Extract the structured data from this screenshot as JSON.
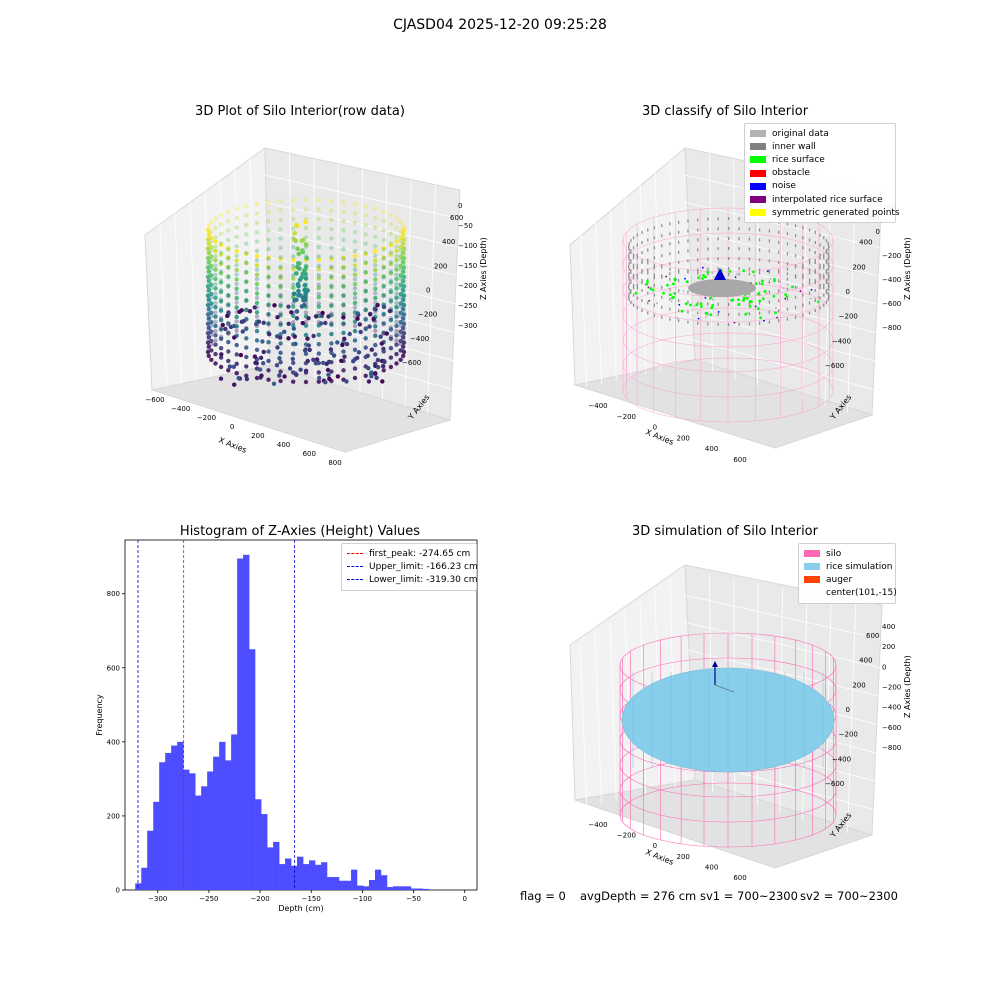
{
  "figure": {
    "suptitle": "CJASD04 2025-12-20 09:25:28",
    "footer": {
      "flag": "flag = 0",
      "avg_depth": "avgDepth = 276 cm",
      "sv1": "sv1 = 700~2300",
      "sv2": "sv2 = 700~2300"
    }
  },
  "chart_data": [
    {
      "type": "scatter",
      "title": "3D Plot of Silo Interior(row data)",
      "xlabel": "X Axies",
      "ylabel": "Y Axies",
      "zlabel": "Z Axies (Depth)",
      "x_ticks": [
        "−600",
        "−400",
        "−200",
        "0",
        "200",
        "400",
        "600",
        "800"
      ],
      "y_ticks": [
        "−600",
        "−400",
        "−200",
        "0",
        "200",
        "400",
        "600"
      ],
      "z_ticks": [
        "0",
        "−50",
        "−100",
        "−150",
        "−200",
        "−250",
        "−300"
      ],
      "colormap": "viridis",
      "grid": true
    },
    {
      "type": "scatter",
      "title": "3D classify of Silo Interior",
      "xlabel": "X Axies",
      "ylabel": "Y Axies",
      "zlabel": "Z Axies (Depth)",
      "x_ticks": [
        "−400",
        "−200",
        "0",
        "200",
        "400",
        "600"
      ],
      "y_ticks": [
        "−600",
        "−400",
        "−200",
        "0",
        "200",
        "400",
        "600"
      ],
      "z_ticks": [
        "200",
        "0",
        "−200",
        "−400",
        "−600",
        "−800"
      ],
      "z_tick_partial": "0",
      "legend_position": "top-right",
      "legend": [
        {
          "label": "original data",
          "color": "#b3b3b3"
        },
        {
          "label": "inner wall",
          "color": "#808080"
        },
        {
          "label": "rice surface",
          "color": "#00ff00"
        },
        {
          "label": "obstacle",
          "color": "#ff0000"
        },
        {
          "label": "noise",
          "color": "#0000ff"
        },
        {
          "label": "interpolated rice surface",
          "color": "#800080"
        },
        {
          "label": "symmetric generated points",
          "color": "#ffff00"
        }
      ],
      "grid": true
    },
    {
      "type": "bar",
      "title": "Histogram of Z-Axies (Height) Values",
      "xlabel": "Depth (cm)",
      "ylabel": "Frequency",
      "xlim": [
        -332,
        12
      ],
      "ylim": [
        0,
        945
      ],
      "x_ticks": [
        -300,
        -250,
        -200,
        -150,
        -100,
        -50,
        0
      ],
      "x_tick_labels": [
        "−300",
        "−250",
        "−200",
        "−150",
        "−100",
        "−50",
        "0"
      ],
      "y_ticks": [
        0,
        200,
        400,
        600,
        800
      ],
      "bar_color": "#4d4dff",
      "bins": [
        [
          -322.0,
          -316.1,
          18
        ],
        [
          -316.1,
          -310.3,
          60
        ],
        [
          -310.3,
          -304.4,
          160
        ],
        [
          -304.4,
          -298.6,
          238
        ],
        [
          -298.6,
          -292.7,
          345
        ],
        [
          -292.7,
          -286.9,
          370
        ],
        [
          -286.9,
          -281.0,
          390
        ],
        [
          -281.0,
          -275.1,
          400
        ],
        [
          -275.1,
          -269.3,
          325
        ],
        [
          -269.3,
          -263.4,
          315
        ],
        [
          -263.4,
          -257.6,
          255
        ],
        [
          -257.6,
          -251.7,
          280
        ],
        [
          -251.7,
          -245.9,
          320
        ],
        [
          -245.9,
          -240.0,
          360
        ],
        [
          -240.0,
          -234.1,
          400
        ],
        [
          -234.1,
          -228.3,
          350
        ],
        [
          -228.3,
          -222.4,
          420
        ],
        [
          -222.4,
          -216.6,
          895
        ],
        [
          -216.6,
          -210.7,
          905
        ],
        [
          -210.7,
          -204.9,
          650
        ],
        [
          -204.9,
          -199.0,
          245
        ],
        [
          -199.0,
          -193.1,
          205
        ],
        [
          -193.1,
          -187.3,
          115
        ],
        [
          -187.3,
          -181.4,
          130
        ],
        [
          -181.4,
          -175.6,
          70
        ],
        [
          -175.6,
          -169.7,
          85
        ],
        [
          -169.7,
          -163.9,
          65
        ],
        [
          -163.9,
          -158.0,
          90
        ],
        [
          -158.0,
          -152.1,
          70
        ],
        [
          -152.1,
          -146.3,
          80
        ],
        [
          -146.3,
          -140.4,
          68
        ],
        [
          -140.4,
          -134.6,
          75
        ],
        [
          -134.6,
          -128.7,
          35
        ],
        [
          -128.7,
          -122.9,
          35
        ],
        [
          -122.9,
          -117.0,
          25
        ],
        [
          -117.0,
          -111.1,
          25
        ],
        [
          -111.1,
          -105.3,
          55
        ],
        [
          -105.3,
          -99.4,
          12
        ],
        [
          -99.4,
          -93.6,
          10
        ],
        [
          -93.6,
          -87.7,
          27
        ],
        [
          -87.7,
          -81.9,
          55
        ],
        [
          -81.9,
          -76.0,
          40
        ],
        [
          -76.0,
          -70.1,
          8
        ],
        [
          -70.1,
          -64.3,
          10
        ],
        [
          -64.3,
          -58.4,
          10
        ],
        [
          -58.4,
          -52.6,
          10
        ],
        [
          -52.6,
          -46.7,
          4
        ],
        [
          -46.7,
          -40.9,
          4
        ],
        [
          -40.9,
          -35.0,
          3
        ]
      ],
      "vlines": [
        {
          "label": "first_peak: -274.65 cm",
          "value": -274.65,
          "color": "#ff0000"
        },
        {
          "label": "Upper_limit: -166.23 cm",
          "value": -166.23,
          "color": "#0000cc"
        },
        {
          "label": "Lower_limit: -319.30 cm",
          "value": -319.3,
          "color": "#0000cc"
        }
      ],
      "legend_position": "top-right"
    },
    {
      "type": "scatter",
      "title": "3D simulation of Silo Interior",
      "xlabel": "X Axies",
      "ylabel": "Y Axies",
      "zlabel": "Z Axies (Depth)",
      "x_ticks": [
        "−400",
        "−200",
        "0",
        "200",
        "400",
        "600"
      ],
      "y_ticks": [
        "−600",
        "−400",
        "−200",
        "0",
        "200",
        "400",
        "600"
      ],
      "z_ticks": [
        "400",
        "200",
        "0",
        "−200",
        "−400",
        "−600",
        "−800"
      ],
      "legend_position": "top-right",
      "legend": [
        {
          "label": "silo",
          "color": "#ff69b4"
        },
        {
          "label": "rice simulation",
          "color": "#87ceeb"
        },
        {
          "label": "auger",
          "color": "#ff4500"
        },
        {
          "label": "center(101,-15)",
          "color": ""
        }
      ],
      "grid": true
    }
  ]
}
